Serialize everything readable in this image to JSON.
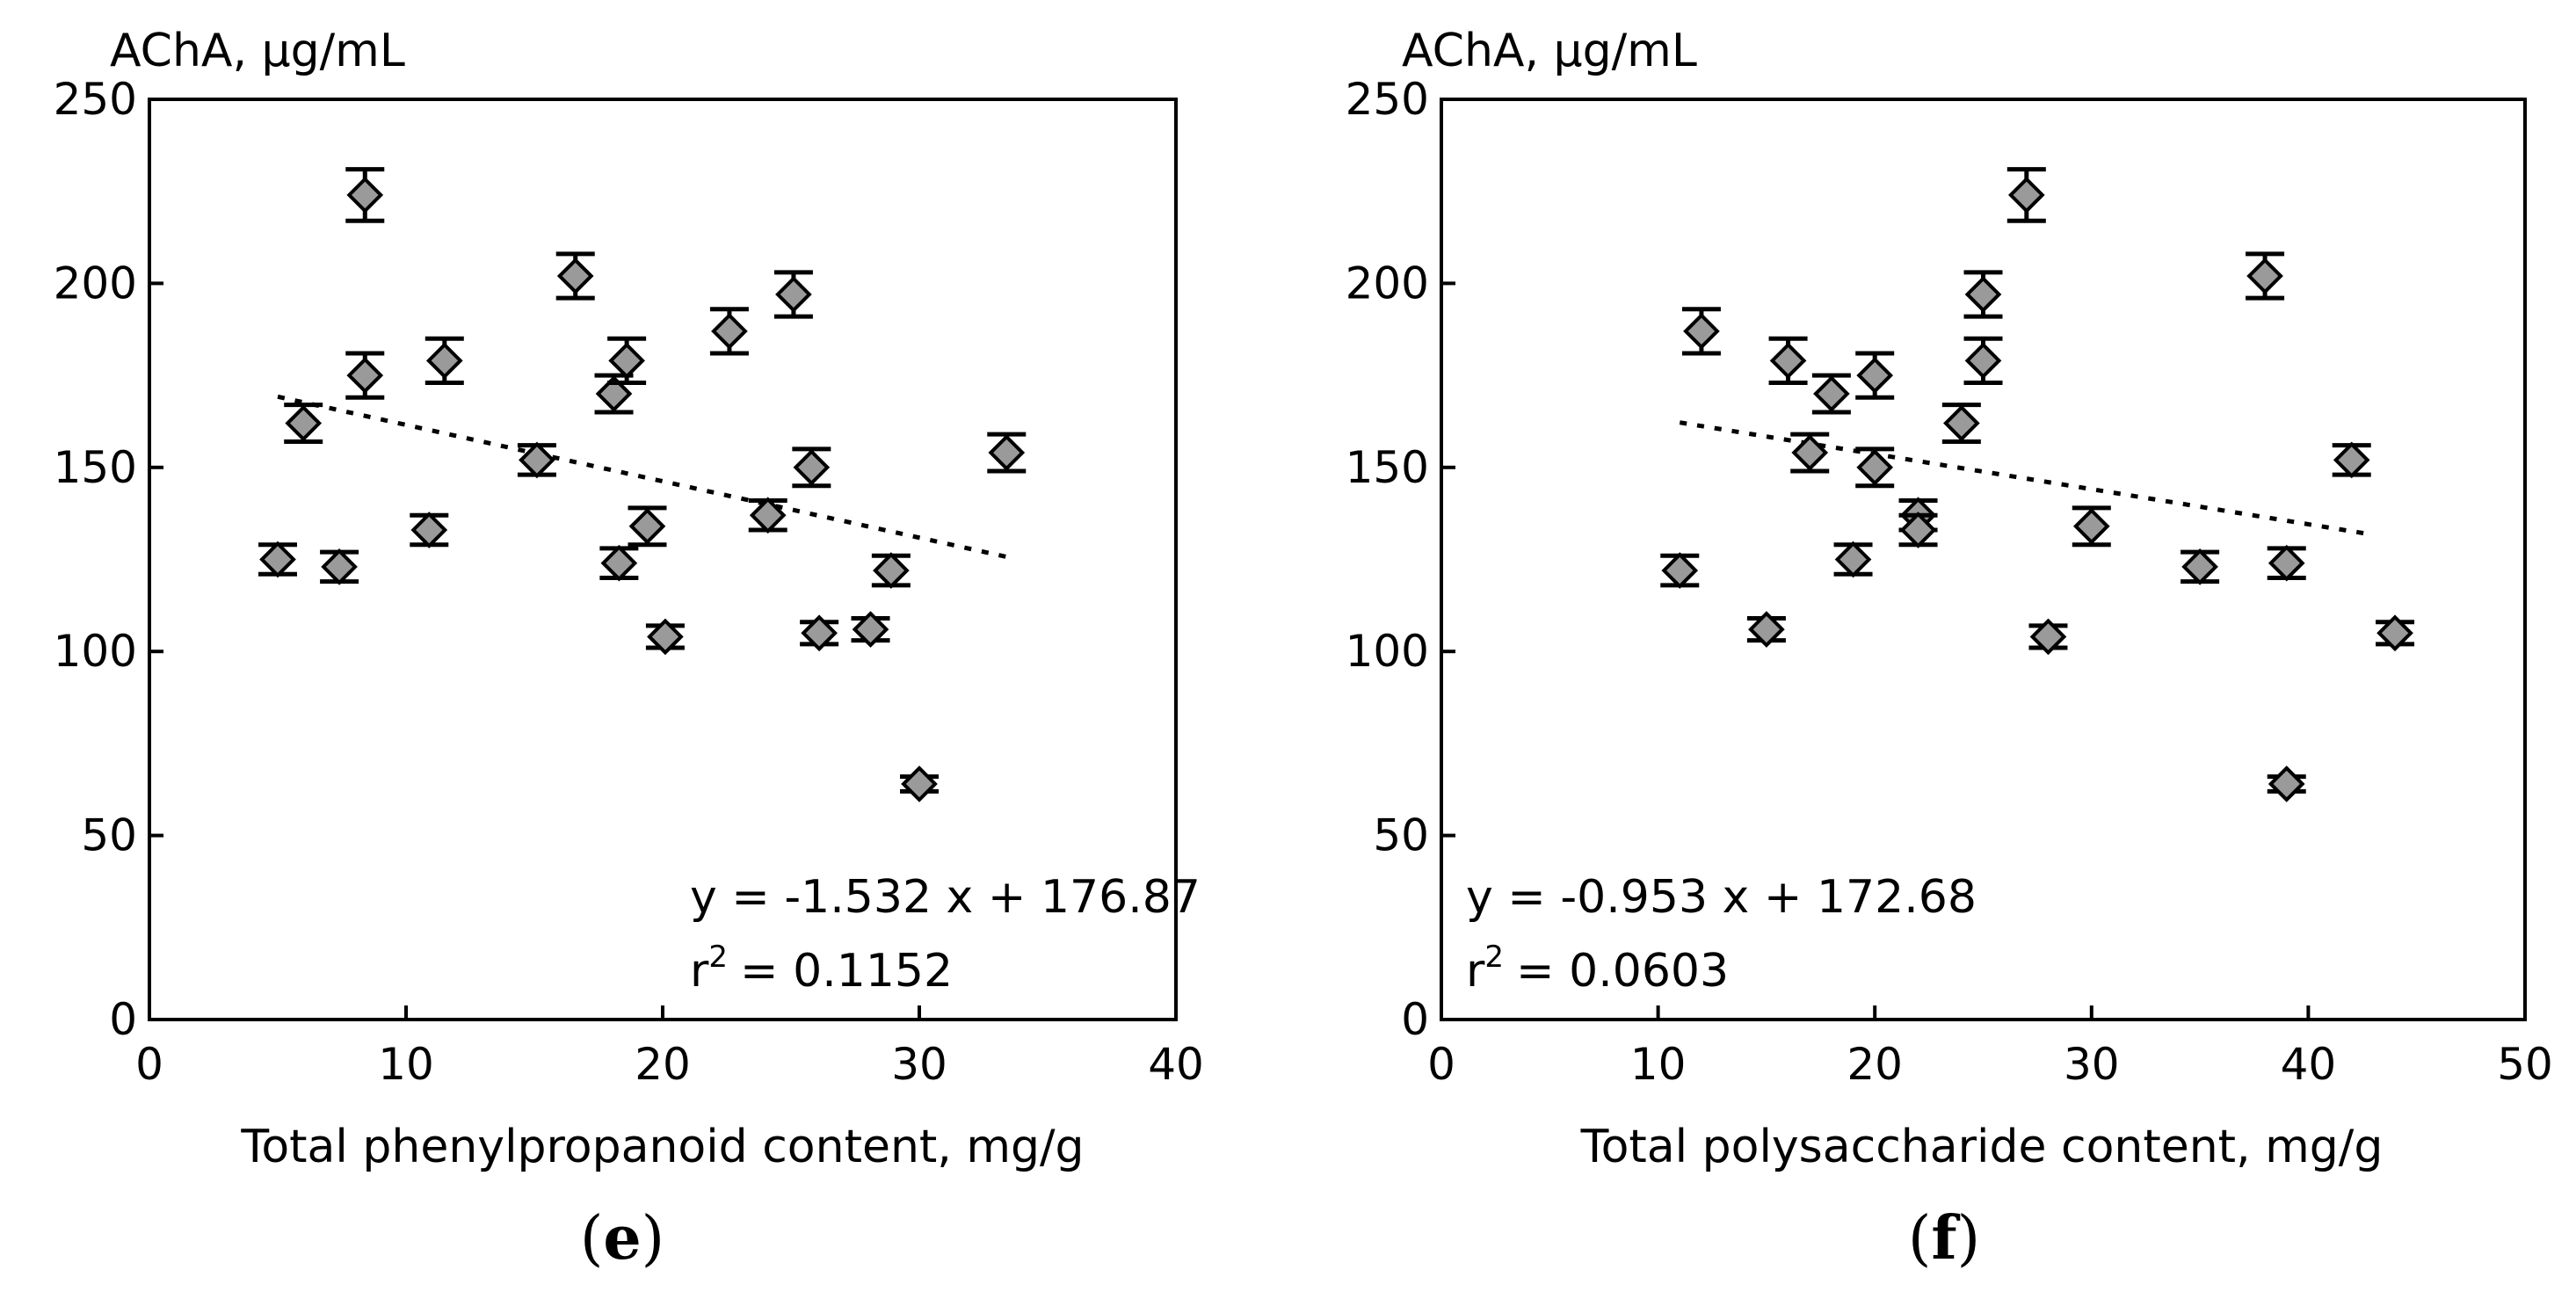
{
  "chart_data": [
    {
      "type": "scatter",
      "panel_label": "e",
      "ylabel": "AChA, µg/mL",
      "xlabel": "Total phenylpropanoid content, mg/g",
      "xlim": [
        0,
        40
      ],
      "ylim": [
        0,
        250
      ],
      "xticks": [
        0,
        10,
        20,
        30,
        40
      ],
      "yticks": [
        0,
        50,
        100,
        150,
        200,
        250
      ],
      "equation": "y = -1.532 x + 176.87",
      "r2_value": "= 0.1152",
      "trendline": {
        "slope": -1.532,
        "intercept": 176.87,
        "x_range": [
          5,
          33.5
        ],
        "style": "dotted"
      },
      "points": [
        {
          "x": 5.0,
          "y": 125,
          "err": 4
        },
        {
          "x": 6.0,
          "y": 162,
          "err": 5
        },
        {
          "x": 7.4,
          "y": 123,
          "err": 4
        },
        {
          "x": 8.4,
          "y": 224,
          "err": 7
        },
        {
          "x": 8.4,
          "y": 175,
          "err": 6
        },
        {
          "x": 10.9,
          "y": 133,
          "err": 4
        },
        {
          "x": 11.5,
          "y": 179,
          "err": 6
        },
        {
          "x": 15.1,
          "y": 152,
          "err": 4
        },
        {
          "x": 16.6,
          "y": 202,
          "err": 6
        },
        {
          "x": 18.1,
          "y": 170,
          "err": 5
        },
        {
          "x": 18.3,
          "y": 124,
          "err": 4
        },
        {
          "x": 18.6,
          "y": 179,
          "err": 6
        },
        {
          "x": 19.4,
          "y": 134,
          "err": 5
        },
        {
          "x": 20.1,
          "y": 104,
          "err": 3
        },
        {
          "x": 22.6,
          "y": 187,
          "err": 6
        },
        {
          "x": 24.1,
          "y": 137,
          "err": 4
        },
        {
          "x": 25.1,
          "y": 197,
          "err": 6
        },
        {
          "x": 25.8,
          "y": 150,
          "err": 5
        },
        {
          "x": 26.1,
          "y": 105,
          "err": 3
        },
        {
          "x": 28.1,
          "y": 106,
          "err": 3
        },
        {
          "x": 28.9,
          "y": 122,
          "err": 4
        },
        {
          "x": 30.0,
          "y": 64,
          "err": 2
        },
        {
          "x": 33.4,
          "y": 154,
          "err": 5
        }
      ]
    },
    {
      "type": "scatter",
      "panel_label": "f",
      "ylabel": "AChA, µg/mL",
      "xlabel": "Total polysaccharide content, mg/g",
      "xlim": [
        0,
        50
      ],
      "ylim": [
        0,
        250
      ],
      "xticks": [
        0,
        10,
        20,
        30,
        40,
        50
      ],
      "yticks": [
        0,
        50,
        100,
        150,
        200,
        250
      ],
      "equation": "y = -0.953 x + 172.68",
      "r2_value": "= 0.0603",
      "trendline": {
        "slope": -0.953,
        "intercept": 172.68,
        "x_range": [
          11,
          43
        ],
        "style": "dotted"
      },
      "points": [
        {
          "x": 11.0,
          "y": 122,
          "err": 4
        },
        {
          "x": 12.0,
          "y": 187,
          "err": 6
        },
        {
          "x": 15.0,
          "y": 106,
          "err": 3
        },
        {
          "x": 16.0,
          "y": 179,
          "err": 6
        },
        {
          "x": 17.0,
          "y": 154,
          "err": 5
        },
        {
          "x": 18.0,
          "y": 170,
          "err": 5
        },
        {
          "x": 19.0,
          "y": 125,
          "err": 4
        },
        {
          "x": 20.0,
          "y": 175,
          "err": 6
        },
        {
          "x": 20.0,
          "y": 150,
          "err": 5
        },
        {
          "x": 22.0,
          "y": 137,
          "err": 4
        },
        {
          "x": 22.0,
          "y": 133,
          "err": 4
        },
        {
          "x": 24.0,
          "y": 162,
          "err": 5
        },
        {
          "x": 25.0,
          "y": 197,
          "err": 6
        },
        {
          "x": 25.0,
          "y": 179,
          "err": 6
        },
        {
          "x": 27.0,
          "y": 224,
          "err": 7
        },
        {
          "x": 28.0,
          "y": 104,
          "err": 3
        },
        {
          "x": 30.0,
          "y": 134,
          "err": 5
        },
        {
          "x": 35.0,
          "y": 123,
          "err": 4
        },
        {
          "x": 38.0,
          "y": 202,
          "err": 6
        },
        {
          "x": 39.0,
          "y": 124,
          "err": 4
        },
        {
          "x": 39.0,
          "y": 64,
          "err": 2
        },
        {
          "x": 42.0,
          "y": 152,
          "err": 4
        },
        {
          "x": 44.0,
          "y": 105,
          "err": 3
        }
      ]
    }
  ],
  "colors": {
    "marker_fill": "#9a9a9a",
    "marker_stroke": "#000000",
    "axis": "#000000",
    "trendline": "#000000"
  }
}
